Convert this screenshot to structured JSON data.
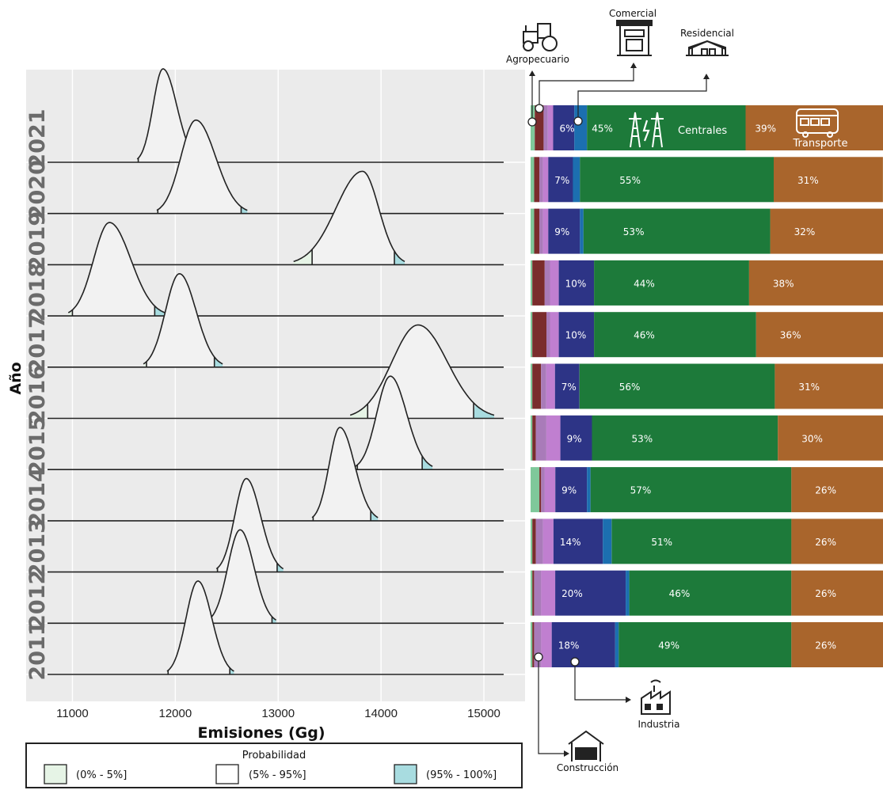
{
  "chart_data": [
    {
      "type": "ridgeline",
      "xlabel": "Emisiones (Gg)",
      "ylabel": "Año",
      "xlim": [
        10550,
        15400
      ],
      "xticks": [
        11000,
        12000,
        13000,
        14000,
        15000
      ],
      "grid": true,
      "series": [
        {
          "year": "2021",
          "range": [
            11630,
            12230
          ],
          "mode": 11880,
          "p5": 11640,
          "p95": 12160
        },
        {
          "year": "2020",
          "range": [
            11820,
            12700
          ],
          "mode": 12200,
          "p5": 11830,
          "p95": 12640
        },
        {
          "year": "2019",
          "range": [
            13150,
            14230
          ],
          "mode": 13820,
          "p5": 13330,
          "p95": 14130
        },
        {
          "year": "2018",
          "range": [
            10960,
            11900
          ],
          "mode": 11360,
          "p5": 11000,
          "p95": 11800
        },
        {
          "year": "2017",
          "range": [
            11690,
            12460
          ],
          "mode": 12040,
          "p5": 11720,
          "p95": 12380
        },
        {
          "year": "2016",
          "range": [
            13700,
            15100
          ],
          "mode": 14360,
          "p5": 13870,
          "p95": 14900
        },
        {
          "year": "2015",
          "range": [
            13750,
            14500
          ],
          "mode": 14090,
          "p5": 13770,
          "p95": 14400
        },
        {
          "year": "2014",
          "range": [
            13330,
            13970
          ],
          "mode": 13600,
          "p5": 13340,
          "p95": 13900
        },
        {
          "year": "2013",
          "range": [
            12400,
            13050
          ],
          "mode": 12690,
          "p5": 12410,
          "p95": 12990
        },
        {
          "year": "2012",
          "range": [
            12320,
            12980
          ],
          "mode": 12630,
          "p5": 12330,
          "p95": 12940
        },
        {
          "year": "2011",
          "range": [
            11920,
            12570
          ],
          "mode": 12220,
          "p5": 11930,
          "p95": 12530
        }
      ]
    },
    {
      "type": "bar",
      "stacked": true,
      "orientation": "horizontal",
      "categories": [
        "2021",
        "2020",
        "2019",
        "2018",
        "2017",
        "2016",
        "2015",
        "2014",
        "2013",
        "2012",
        "2011"
      ],
      "sectors": [
        "Agropecuario",
        "Construcción",
        "Comercial",
        "Residencial",
        "Industria",
        "Centrales",
        "Transporte"
      ],
      "values": [
        [
          1.2,
          2.5,
          1.2,
          1.5,
          6,
          45,
          39
        ],
        [
          1.0,
          1.5,
          1.0,
          1.5,
          7,
          55,
          31
        ],
        [
          1.0,
          1.5,
          1.0,
          1.5,
          9,
          53,
          32
        ],
        [
          0.5,
          3.5,
          1.5,
          2.5,
          10,
          44,
          38
        ],
        [
          0.5,
          4.0,
          1.0,
          2.5,
          10,
          46,
          36
        ],
        [
          0.5,
          2.5,
          1.5,
          2.5,
          7,
          56,
          31
        ],
        [
          0.5,
          1.0,
          3.0,
          4.0,
          9,
          53,
          30
        ],
        [
          2.5,
          0.5,
          1.0,
          3.0,
          9,
          57,
          26
        ],
        [
          0.5,
          1.0,
          2.0,
          3.0,
          14,
          51,
          26
        ],
        [
          0.5,
          0.5,
          2.0,
          4.0,
          20,
          46,
          26
        ],
        [
          0.5,
          0.5,
          2.0,
          3.0,
          18,
          49,
          26
        ]
      ]
    }
  ],
  "right_labels": {
    "centrales": "Centrales",
    "transporte": "Transporte",
    "agropecuario": "Agropecuario",
    "comercial": "Comercial",
    "residencial": "Residencial",
    "industria": "Industria",
    "construccion": "Construcción"
  },
  "legend": {
    "title": "Probabilidad",
    "items": [
      "(0% - 5%]",
      "(5% - 95%]",
      "(95% - 100%]"
    ]
  },
  "colors": {
    "panel_bg": "#ebebeb",
    "ridge_fill": "#f2f2f2",
    "tail_low": "#e6f4e6",
    "tail_high": "#a8dce0",
    "agropecuario": "#7fc89a",
    "construccion": "#7a2c2c",
    "comercial": "#a97bb9",
    "residencial": "#c07fd0",
    "industria": "#2d3486",
    "otros": "#1c6fb0",
    "centrales": "#1d7a3a",
    "transporte": "#a9652c"
  }
}
